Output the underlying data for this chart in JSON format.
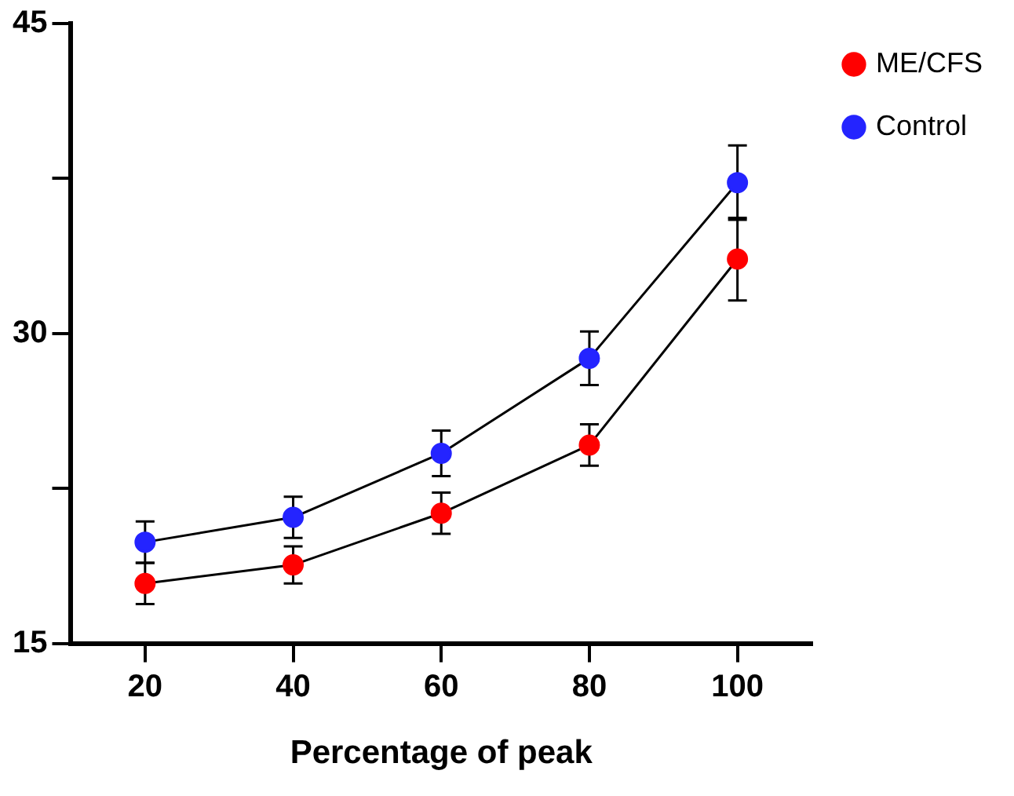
{
  "chart_data": {
    "type": "line",
    "xlabel": "Percentage of peak",
    "x": [
      20,
      40,
      60,
      80,
      100
    ],
    "series": [
      {
        "name": "ME/CFS",
        "color": "#ff0000",
        "values": [
          17.9,
          18.8,
          21.3,
          24.6,
          33.6
        ],
        "errors": [
          1.0,
          0.9,
          1.0,
          1.0,
          2.0
        ]
      },
      {
        "name": "Control",
        "color": "#2424ff",
        "values": [
          19.9,
          21.1,
          24.2,
          28.8,
          37.3
        ],
        "errors": [
          1.0,
          1.0,
          1.1,
          1.3,
          1.8
        ]
      }
    ],
    "xlim": [
      10,
      110
    ],
    "xticks": [
      20,
      40,
      60,
      80,
      100
    ],
    "ylim": [
      15,
      45
    ],
    "yticks": [
      15,
      {
        "value": 22.5,
        "label": null
      },
      30,
      {
        "value": 37.5,
        "label": null
      },
      45
    ],
    "grid": false,
    "legend": "top right",
    "marker": "circle",
    "line_style": "solid"
  }
}
